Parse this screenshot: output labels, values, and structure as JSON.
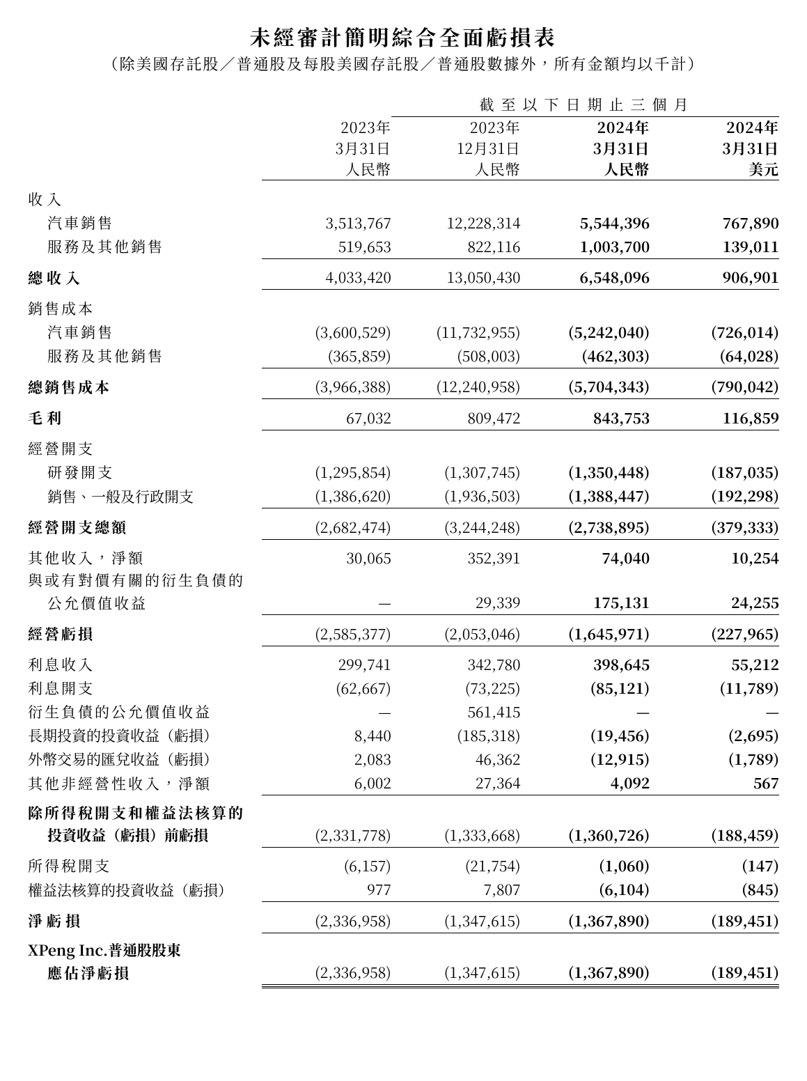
{
  "title": "未經審計簡明綜合全面虧損表",
  "subtitle": "（除美國存託股／普通股及每股美國存託股／普通股數據外，所有金額均以千計）",
  "periodHeader": "截至以下日期止三個月",
  "cols": [
    {
      "y": "2023年",
      "d": "3月31日",
      "c": "人民幣",
      "bold": false
    },
    {
      "y": "2023年",
      "d": "12月31日",
      "c": "人民幣",
      "bold": false
    },
    {
      "y": "2024年",
      "d": "3月31日",
      "c": "人民幣",
      "bold": true
    },
    {
      "y": "2024年",
      "d": "3月31日",
      "c": "美元",
      "bold": true
    }
  ],
  "labels": {
    "revenue": "收入",
    "vehicle": "汽車銷售",
    "service": "服務及其他銷售",
    "totalRevenue": "總收入",
    "cos": "銷售成本",
    "totalCos": "總銷售成本",
    "gross": "毛利",
    "opex": "經營開支",
    "rd": "研發開支",
    "sga": "銷售、一般及行政開支",
    "totalOpex": "經營開支總額",
    "otherIncome": "其他收入，淨額",
    "fvCont1": "與或有對價有關的衍生負債的",
    "fvCont2": "公允價值收益",
    "opLoss": "經營虧損",
    "intInc": "利息收入",
    "intExp": "利息開支",
    "fvDeriv": "衍生負債的公允價值收益",
    "ltInv": "長期投資的投資收益（虧損）",
    "fx": "外幣交易的匯兌收益（虧損）",
    "otherNonOp": "其他非經營性收入，淨額",
    "preTax1": "除所得稅開支和權益法核算的",
    "preTax2": "投資收益（虧損）前虧損",
    "tax": "所得稅開支",
    "equity": "權益法核算的投資收益（虧損）",
    "netLoss": "淨虧損",
    "attrib1": "XPeng Inc.普通股股東",
    "attrib2": "應佔淨虧損"
  },
  "vals": {
    "vehicle": [
      "3,513,767",
      "12,228,314",
      "5,544,396",
      "767,890"
    ],
    "service": [
      "519,653",
      "822,116",
      "1,003,700",
      "139,011"
    ],
    "totalRevenue": [
      "4,033,420",
      "13,050,430",
      "6,548,096",
      "906,901"
    ],
    "cosVehicle": [
      "(3,600,529)",
      "(11,732,955)",
      "(5,242,040)",
      "(726,014)"
    ],
    "cosService": [
      "(365,859)",
      "(508,003)",
      "(462,303)",
      "(64,028)"
    ],
    "totalCos": [
      "(3,966,388)",
      "(12,240,958)",
      "(5,704,343)",
      "(790,042)"
    ],
    "gross": [
      "67,032",
      "809,472",
      "843,753",
      "116,859"
    ],
    "rd": [
      "(1,295,854)",
      "(1,307,745)",
      "(1,350,448)",
      "(187,035)"
    ],
    "sga": [
      "(1,386,620)",
      "(1,936,503)",
      "(1,388,447)",
      "(192,298)"
    ],
    "totalOpex": [
      "(2,682,474)",
      "(3,244,248)",
      "(2,738,895)",
      "(379,333)"
    ],
    "otherIncome": [
      "30,065",
      "352,391",
      "74,040",
      "10,254"
    ],
    "fvCont": [
      "—",
      "29,339",
      "175,131",
      "24,255"
    ],
    "opLoss": [
      "(2,585,377)",
      "(2,053,046)",
      "(1,645,971)",
      "(227,965)"
    ],
    "intInc": [
      "299,741",
      "342,780",
      "398,645",
      "55,212"
    ],
    "intExp": [
      "(62,667)",
      "(73,225)",
      "(85,121)",
      "(11,789)"
    ],
    "fvDeriv": [
      "—",
      "561,415",
      "—",
      "—"
    ],
    "ltInv": [
      "8,440",
      "(185,318)",
      "(19,456)",
      "(2,695)"
    ],
    "fx": [
      "2,083",
      "46,362",
      "(12,915)",
      "(1,789)"
    ],
    "otherNonOp": [
      "6,002",
      "27,364",
      "4,092",
      "567"
    ],
    "preTax": [
      "(2,331,778)",
      "(1,333,668)",
      "(1,360,726)",
      "(188,459)"
    ],
    "tax": [
      "(6,157)",
      "(21,754)",
      "(1,060)",
      "(147)"
    ],
    "equity": [
      "977",
      "7,807",
      "(6,104)",
      "(845)"
    ],
    "netLoss": [
      "(2,336,958)",
      "(1,347,615)",
      "(1,367,890)",
      "(189,451)"
    ],
    "attrib": [
      "(2,336,958)",
      "(1,347,615)",
      "(1,367,890)",
      "(189,451)"
    ]
  }
}
